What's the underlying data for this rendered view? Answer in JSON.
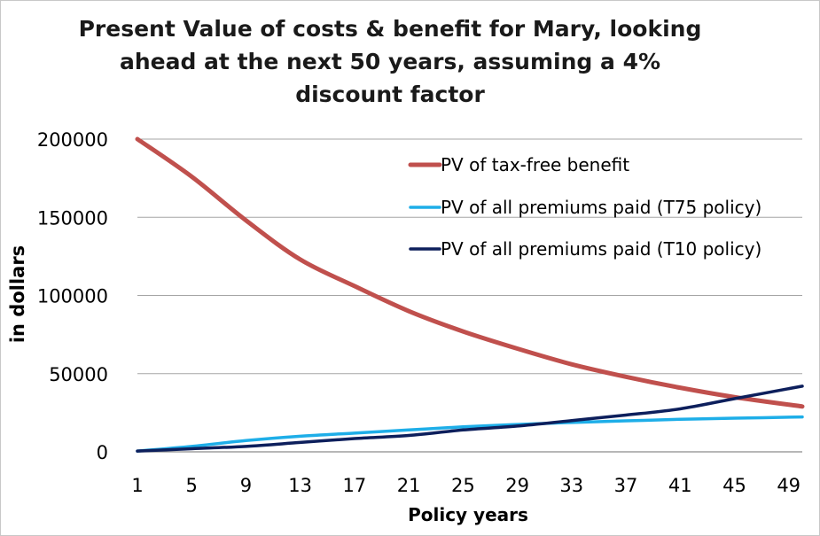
{
  "chart_data": {
    "type": "line",
    "title": "Present Value of costs & benefit for Mary, looking ahead at the next 50 years, assuming a 4% discount factor",
    "xlabel": "Policy years",
    "ylabel": "in dollars",
    "xlim": [
      1,
      50
    ],
    "ylim": [
      0,
      200000
    ],
    "xticks": [
      1,
      5,
      9,
      13,
      17,
      21,
      25,
      29,
      33,
      37,
      41,
      45,
      49
    ],
    "yticks": [
      0,
      50000,
      100000,
      150000,
      200000
    ],
    "ytick_labels": [
      "0",
      "50000",
      "100000",
      "150000",
      "200000"
    ],
    "grid": "horizontal",
    "legend_position": "top-right",
    "x": [
      1,
      5,
      9,
      13,
      17,
      21,
      25,
      29,
      33,
      37,
      41,
      45,
      50
    ],
    "series": [
      {
        "name": "PV of tax-free benefit",
        "color": "#c0504d",
        "values": [
          200000,
          176000,
          148000,
          123000,
          106000,
          90000,
          77000,
          66000,
          56000,
          48000,
          41000,
          35000,
          29000
        ]
      },
      {
        "name": "PV of all premiums paid (T75 policy)",
        "color": "#1eaee8",
        "values": [
          500,
          3500,
          7200,
          10000,
          12000,
          14000,
          16000,
          17500,
          18800,
          19800,
          20800,
          21500,
          22300
        ]
      },
      {
        "name": "PV of all premiums paid (T10 policy)",
        "color": "#0d1f5c",
        "values": [
          500,
          2000,
          3500,
          6000,
          8500,
          10500,
          14000,
          16500,
          20000,
          23500,
          27500,
          34000,
          42000
        ]
      }
    ]
  }
}
